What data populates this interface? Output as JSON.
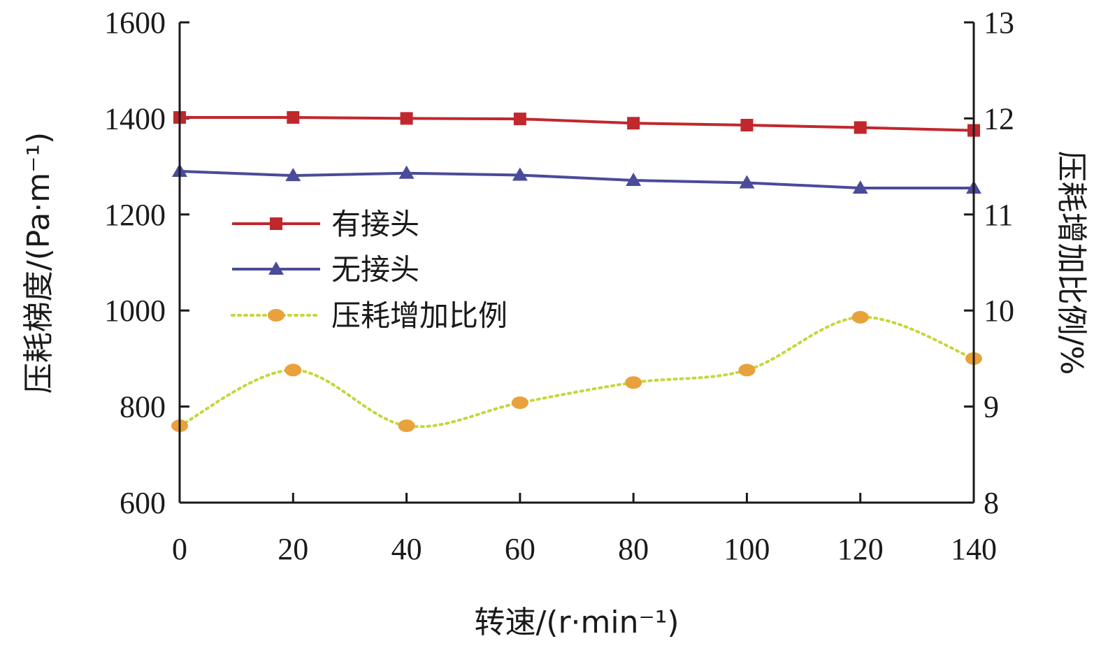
{
  "chart_data": {
    "type": "line",
    "x": [
      0,
      20,
      40,
      60,
      80,
      100,
      120,
      140
    ],
    "xlabel": "转速/(r·min⁻¹)",
    "ylabel_left": "压耗梯度/(Pa·m⁻¹)",
    "ylabel_right": "压耗增加比例/%",
    "xlim": [
      0,
      140
    ],
    "ylim_left": [
      600,
      1600
    ],
    "ylim_right": [
      8,
      13
    ],
    "x_ticks": [
      0,
      20,
      40,
      60,
      80,
      100,
      120,
      140
    ],
    "y_ticks_left": [
      600,
      800,
      1000,
      1200,
      1400,
      1600
    ],
    "y_ticks_right": [
      8,
      9,
      10,
      11,
      12,
      13
    ],
    "grid": false,
    "legend_position": "center-left",
    "series": [
      {
        "name": "有接头",
        "axis": "left",
        "marker": "square",
        "line_style": "solid",
        "color": "#c0282d",
        "values": [
          1402,
          1402,
          1400,
          1399,
          1390,
          1386,
          1381,
          1375
        ]
      },
      {
        "name": "无接头",
        "axis": "left",
        "marker": "triangle",
        "line_style": "solid",
        "color": "#4b4b9b",
        "values": [
          1290,
          1281,
          1286,
          1282,
          1271,
          1266,
          1255,
          1255
        ]
      },
      {
        "name": "压耗增加比例",
        "axis": "right",
        "marker": "circle",
        "line_style": "dotted",
        "color": "#e9a23b",
        "line_color": "#c6d63a",
        "values": [
          8.8,
          9.38,
          8.8,
          9.04,
          9.25,
          9.38,
          9.93,
          9.5
        ]
      }
    ]
  }
}
